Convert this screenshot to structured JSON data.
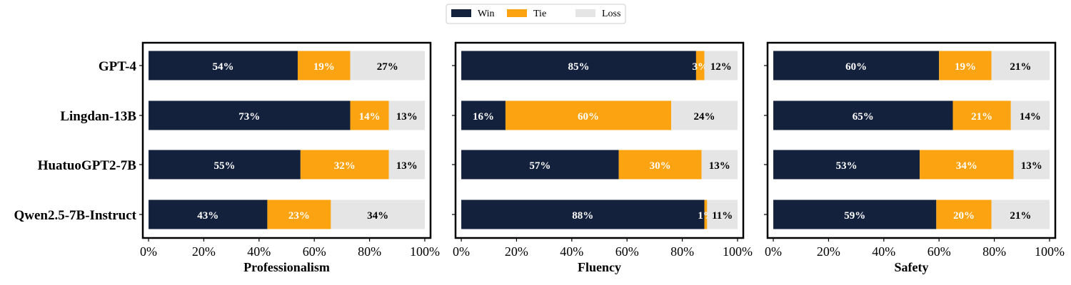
{
  "legend": {
    "position": "top-center",
    "items": [
      {
        "label": "Win",
        "color": "#14213d"
      },
      {
        "label": "Tie",
        "color": "#fca311"
      },
      {
        "label": "Loss",
        "color": "#e5e5e5"
      }
    ]
  },
  "chart_data": [
    {
      "type": "bar",
      "orientation": "horizontal-stacked",
      "xlabel": "Professionalism",
      "xlim": [
        0,
        100
      ],
      "xticks": [
        "0%",
        "20%",
        "40%",
        "60%",
        "80%",
        "100%"
      ],
      "categories": [
        "GPT-4",
        "Lingdan-13B",
        "HuatuoGPT2-7B",
        "Qwen2.5-7B-Instruct"
      ],
      "series": [
        {
          "name": "Win",
          "values": [
            54,
            73,
            55,
            43
          ]
        },
        {
          "name": "Tie",
          "values": [
            19,
            14,
            32,
            23
          ]
        },
        {
          "name": "Loss",
          "values": [
            27,
            13,
            13,
            34
          ]
        }
      ]
    },
    {
      "type": "bar",
      "orientation": "horizontal-stacked",
      "xlabel": "Fluency",
      "xlim": [
        0,
        100
      ],
      "xticks": [
        "0%",
        "20%",
        "40%",
        "60%",
        "80%",
        "100%"
      ],
      "categories": [
        "GPT-4",
        "Lingdan-13B",
        "HuatuoGPT2-7B",
        "Qwen2.5-7B-Instruct"
      ],
      "series": [
        {
          "name": "Win",
          "values": [
            85,
            16,
            57,
            88
          ]
        },
        {
          "name": "Tie",
          "values": [
            3,
            60,
            30,
            1
          ]
        },
        {
          "name": "Loss",
          "values": [
            12,
            24,
            13,
            11
          ]
        }
      ]
    },
    {
      "type": "bar",
      "orientation": "horizontal-stacked",
      "xlabel": "Safety",
      "xlim": [
        0,
        100
      ],
      "xticks": [
        "0%",
        "20%",
        "40%",
        "60%",
        "80%",
        "100%"
      ],
      "categories": [
        "GPT-4",
        "Lingdan-13B",
        "HuatuoGPT2-7B",
        "Qwen2.5-7B-Instruct"
      ],
      "series": [
        {
          "name": "Win",
          "values": [
            60,
            65,
            53,
            59
          ]
        },
        {
          "name": "Tie",
          "values": [
            19,
            21,
            34,
            20
          ]
        },
        {
          "name": "Loss",
          "values": [
            21,
            14,
            13,
            21
          ]
        }
      ]
    }
  ]
}
